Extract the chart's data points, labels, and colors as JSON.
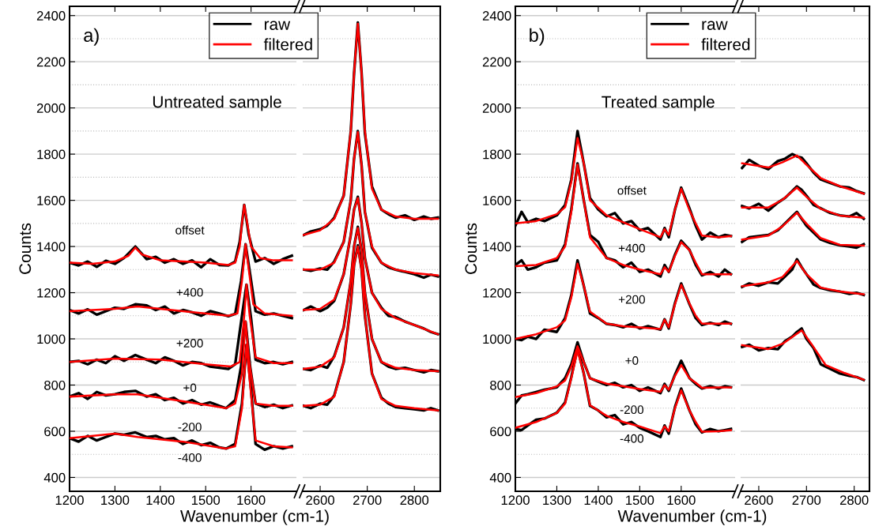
{
  "chart_data": [
    {
      "type": "line",
      "title": "Untreated sample",
      "xlabel": "Wavenumber (cm-1)",
      "ylabel": "Counts",
      "xlim": [
        1200,
        1700
      ],
      "xticks": [
        1200,
        1300,
        1400,
        1500,
        1600
      ],
      "ylim": [
        340,
        2440
      ],
      "yticks": [
        400,
        600,
        800,
        1000,
        1200,
        1400,
        1600,
        1800,
        2000,
        2200,
        2400
      ],
      "grid": "y",
      "legend": "top",
      "tick_labels": "xy",
      "annotations": [
        "a)",
        "offset",
        "+400",
        "+200",
        "+0",
        "-200",
        "-400"
      ],
      "series": [
        {
          "name": "raw",
          "color": "#000000",
          "x": [
            1200,
            1220,
            1240,
            1260,
            1280,
            1300,
            1320,
            1345,
            1370,
            1390,
            1410,
            1430,
            1450,
            1470,
            1490,
            1510,
            1530,
            1550,
            1565,
            1575,
            1585,
            1595,
            1610,
            1630,
            1650,
            1670,
            1690
          ],
          "values": [
            1330,
            1318,
            1335,
            1312,
            1338,
            1325,
            1350,
            1400,
            1345,
            1355,
            1330,
            1345,
            1325,
            1340,
            1310,
            1345,
            1320,
            1318,
            1335,
            1420,
            1580,
            1450,
            1335,
            1350,
            1325,
            1345,
            1360
          ]
        },
        {
          "color": "#000000",
          "x": [
            1200,
            1220,
            1240,
            1260,
            1280,
            1300,
            1320,
            1345,
            1370,
            1390,
            1410,
            1430,
            1450,
            1470,
            1490,
            1510,
            1530,
            1550,
            1565,
            1578,
            1588,
            1598,
            1610,
            1630,
            1650,
            1670,
            1690
          ],
          "values": [
            1125,
            1110,
            1128,
            1105,
            1120,
            1135,
            1130,
            1150,
            1145,
            1125,
            1140,
            1110,
            1125,
            1115,
            1100,
            1120,
            1110,
            1098,
            1108,
            1250,
            1410,
            1280,
            1120,
            1105,
            1110,
            1100,
            1090
          ]
        },
        {
          "color": "#000000",
          "x": [
            1200,
            1220,
            1240,
            1260,
            1280,
            1300,
            1320,
            1345,
            1370,
            1390,
            1410,
            1430,
            1450,
            1470,
            1490,
            1510,
            1530,
            1550,
            1565,
            1580,
            1590,
            1600,
            1610,
            1630,
            1650,
            1670,
            1690
          ],
          "values": [
            900,
            905,
            890,
            910,
            895,
            925,
            905,
            930,
            910,
            895,
            920,
            905,
            885,
            900,
            895,
            880,
            875,
            870,
            890,
            1100,
            1235,
            1090,
            910,
            895,
            900,
            890,
            900
          ]
        },
        {
          "color": "#000000",
          "x": [
            1200,
            1220,
            1240,
            1260,
            1280,
            1300,
            1320,
            1345,
            1370,
            1390,
            1410,
            1430,
            1450,
            1470,
            1490,
            1510,
            1530,
            1545,
            1565,
            1578,
            1588,
            1598,
            1610,
            1630,
            1650,
            1670,
            1690
          ],
          "values": [
            750,
            765,
            740,
            770,
            755,
            760,
            770,
            775,
            750,
            760,
            735,
            745,
            720,
            735,
            715,
            725,
            710,
            700,
            735,
            880,
            1075,
            880,
            720,
            705,
            715,
            700,
            712
          ]
        },
        {
          "color": "#000000",
          "x": [
            1200,
            1220,
            1240,
            1260,
            1280,
            1300,
            1320,
            1345,
            1370,
            1390,
            1410,
            1430,
            1450,
            1470,
            1490,
            1510,
            1530,
            1545,
            1565,
            1580,
            1590,
            1600,
            1610,
            1630,
            1650,
            1670,
            1690
          ],
          "values": [
            570,
            555,
            580,
            560,
            575,
            590,
            585,
            595,
            575,
            580,
            565,
            570,
            545,
            560,
            540,
            550,
            530,
            525,
            545,
            720,
            975,
            780,
            545,
            520,
            535,
            525,
            535
          ]
        },
        {
          "name": "filtered",
          "color": "#ff0000",
          "x": [
            1200,
            1250,
            1300,
            1330,
            1345,
            1360,
            1400,
            1500,
            1550,
            1565,
            1575,
            1580,
            1585,
            1590,
            1600,
            1620,
            1650,
            1690
          ],
          "values": [
            1330,
            1325,
            1335,
            1360,
            1395,
            1365,
            1340,
            1330,
            1320,
            1330,
            1400,
            1500,
            1580,
            1520,
            1400,
            1350,
            1340,
            1340
          ]
        },
        {
          "color": "#ff0000",
          "x": [
            1200,
            1300,
            1350,
            1450,
            1550,
            1570,
            1580,
            1588,
            1595,
            1605,
            1630,
            1690
          ],
          "values": [
            1120,
            1130,
            1140,
            1120,
            1100,
            1110,
            1250,
            1410,
            1300,
            1150,
            1110,
            1100
          ]
        },
        {
          "color": "#ff0000",
          "x": [
            1200,
            1300,
            1400,
            1500,
            1555,
            1575,
            1585,
            1590,
            1597,
            1610,
            1650,
            1690
          ],
          "values": [
            900,
            915,
            910,
            890,
            880,
            900,
            1100,
            1235,
            1100,
            920,
            895,
            895
          ]
        },
        {
          "color": "#ff0000",
          "x": [
            1200,
            1300,
            1350,
            1450,
            1545,
            1565,
            1580,
            1588,
            1596,
            1610,
            1650,
            1690
          ],
          "values": [
            750,
            760,
            760,
            730,
            700,
            720,
            850,
            1075,
            900,
            720,
            710,
            710
          ]
        },
        {
          "color": "#ff0000",
          "x": [
            1200,
            1300,
            1350,
            1450,
            1545,
            1565,
            1580,
            1590,
            1598,
            1610,
            1650,
            1690
          ],
          "values": [
            570,
            590,
            575,
            555,
            525,
            535,
            700,
            975,
            800,
            560,
            535,
            530
          ]
        }
      ]
    },
    {
      "type": "line",
      "xlim": [
        2563,
        2855
      ],
      "xticks": [
        2600,
        2700,
        2800
      ],
      "ylim": [
        340,
        2440
      ],
      "yticks": [
        400,
        600,
        800,
        1000,
        1200,
        1400,
        1600,
        1800,
        2000,
        2200,
        2400
      ],
      "grid": "y",
      "tick_labels": "x",
      "series": [
        {
          "color": "#000000",
          "x": [
            2565,
            2580,
            2600,
            2615,
            2630,
            2650,
            2665,
            2672,
            2680,
            2688,
            2695,
            2710,
            2730,
            2745,
            2760,
            2780,
            2800,
            2820,
            2835,
            2850
          ],
          "values": [
            1450,
            1465,
            1475,
            1490,
            1525,
            1620,
            1900,
            2150,
            2370,
            2150,
            1890,
            1660,
            1560,
            1540,
            1525,
            1535,
            1515,
            1530,
            1520,
            1525
          ]
        },
        {
          "color": "#000000",
          "x": [
            2565,
            2580,
            2600,
            2615,
            2630,
            2650,
            2665,
            2672,
            2680,
            2688,
            2695,
            2710,
            2730,
            2745,
            2760,
            2780,
            2800,
            2820,
            2835,
            2850
          ],
          "values": [
            1300,
            1295,
            1305,
            1300,
            1335,
            1420,
            1600,
            1780,
            1900,
            1750,
            1550,
            1395,
            1330,
            1310,
            1300,
            1290,
            1280,
            1265,
            1278,
            1270
          ]
        },
        {
          "color": "#000000",
          "x": [
            2565,
            2580,
            2600,
            2615,
            2630,
            2650,
            2665,
            2672,
            2680,
            2688,
            2695,
            2710,
            2730,
            2745,
            2760,
            2780,
            2800,
            2820,
            2835,
            2850
          ],
          "values": [
            1125,
            1140,
            1120,
            1135,
            1165,
            1280,
            1450,
            1560,
            1615,
            1500,
            1350,
            1200,
            1135,
            1100,
            1095,
            1075,
            1060,
            1045,
            1030,
            1020
          ]
        },
        {
          "color": "#000000",
          "x": [
            2565,
            2580,
            2600,
            2615,
            2630,
            2650,
            2665,
            2672,
            2680,
            2688,
            2695,
            2710,
            2730,
            2745,
            2760,
            2780,
            2800,
            2820,
            2835,
            2850
          ],
          "values": [
            870,
            865,
            885,
            875,
            925,
            1050,
            1250,
            1400,
            1485,
            1380,
            1200,
            1000,
            900,
            880,
            870,
            875,
            865,
            855,
            865,
            860
          ]
        },
        {
          "color": "#000000",
          "x": [
            2565,
            2580,
            2600,
            2615,
            2630,
            2650,
            2665,
            2672,
            2680,
            2688,
            2695,
            2710,
            2730,
            2745,
            2760,
            2780,
            2800,
            2820,
            2835,
            2850
          ],
          "values": [
            710,
            700,
            720,
            715,
            755,
            900,
            1150,
            1320,
            1405,
            1300,
            1100,
            850,
            745,
            720,
            705,
            700,
            695,
            690,
            700,
            690
          ]
        },
        {
          "color": "#ff0000",
          "x": [
            2565,
            2600,
            2630,
            2650,
            2665,
            2672,
            2680,
            2688,
            2695,
            2710,
            2730,
            2760,
            2800,
            2850
          ],
          "values": [
            1450,
            1470,
            1520,
            1620,
            1900,
            2150,
            2365,
            2150,
            1900,
            1650,
            1560,
            1530,
            1520,
            1520
          ]
        },
        {
          "color": "#ff0000",
          "x": [
            2565,
            2600,
            2630,
            2650,
            2665,
            2672,
            2680,
            2688,
            2695,
            2710,
            2730,
            2760,
            2800,
            2850
          ],
          "values": [
            1300,
            1300,
            1330,
            1420,
            1600,
            1780,
            1895,
            1750,
            1550,
            1400,
            1330,
            1300,
            1285,
            1275
          ]
        },
        {
          "color": "#ff0000",
          "x": [
            2565,
            2600,
            2630,
            2650,
            2665,
            2672,
            2680,
            2688,
            2695,
            2710,
            2730,
            2760,
            2800,
            2850
          ],
          "values": [
            1125,
            1130,
            1170,
            1280,
            1450,
            1560,
            1610,
            1500,
            1350,
            1200,
            1130,
            1090,
            1060,
            1020
          ]
        },
        {
          "color": "#ff0000",
          "x": [
            2565,
            2600,
            2630,
            2650,
            2665,
            2672,
            2680,
            2688,
            2695,
            2710,
            2730,
            2760,
            2800,
            2850
          ],
          "values": [
            870,
            880,
            920,
            1050,
            1250,
            1400,
            1480,
            1380,
            1200,
            1000,
            900,
            875,
            865,
            860
          ]
        },
        {
          "color": "#ff0000",
          "x": [
            2565,
            2600,
            2630,
            2650,
            2665,
            2672,
            2680,
            2688,
            2695,
            2710,
            2730,
            2760,
            2800,
            2850
          ],
          "values": [
            710,
            715,
            750,
            900,
            1150,
            1320,
            1400,
            1300,
            1100,
            850,
            740,
            710,
            700,
            690
          ]
        }
      ]
    },
    {
      "type": "line",
      "title": "Treated sample",
      "xlabel": "Wavenumber (cm-1)",
      "ylabel": "Counts",
      "xlim": [
        1200,
        1730
      ],
      "xticks": [
        1200,
        1300,
        1400,
        1500,
        1600
      ],
      "ylim": [
        340,
        2440
      ],
      "yticks": [
        400,
        600,
        800,
        1000,
        1200,
        1400,
        1600,
        1800,
        2000,
        2200,
        2400
      ],
      "grid": "y",
      "legend": "top",
      "tick_labels": "xy",
      "annotations": [
        "b)",
        "offset",
        "+400",
        "+200",
        "+0",
        "-200",
        "-400"
      ],
      "series": [
        {
          "name": "raw",
          "color": "#000000",
          "x": [
            1200,
            1215,
            1230,
            1250,
            1270,
            1300,
            1320,
            1335,
            1350,
            1365,
            1380,
            1400,
            1420,
            1440,
            1460,
            1480,
            1500,
            1520,
            1550,
            1560,
            1570,
            1585,
            1600,
            1620,
            1635,
            1650,
            1670,
            1690,
            1705,
            1720
          ],
          "values": [
            1490,
            1550,
            1505,
            1520,
            1510,
            1535,
            1580,
            1690,
            1900,
            1760,
            1610,
            1560,
            1530,
            1545,
            1500,
            1510,
            1470,
            1480,
            1430,
            1480,
            1440,
            1560,
            1655,
            1565,
            1490,
            1430,
            1460,
            1440,
            1450,
            1445
          ]
        },
        {
          "color": "#000000",
          "x": [
            1200,
            1215,
            1230,
            1250,
            1270,
            1300,
            1320,
            1335,
            1350,
            1365,
            1380,
            1400,
            1420,
            1440,
            1460,
            1480,
            1500,
            1520,
            1550,
            1560,
            1570,
            1585,
            1600,
            1620,
            1635,
            1650,
            1670,
            1690,
            1705,
            1720
          ],
          "values": [
            1320,
            1340,
            1300,
            1310,
            1330,
            1340,
            1410,
            1560,
            1760,
            1600,
            1450,
            1420,
            1350,
            1340,
            1310,
            1330,
            1290,
            1300,
            1270,
            1320,
            1290,
            1365,
            1425,
            1385,
            1320,
            1275,
            1290,
            1270,
            1300,
            1280
          ]
        },
        {
          "color": "#000000",
          "x": [
            1200,
            1215,
            1230,
            1250,
            1270,
            1300,
            1320,
            1335,
            1350,
            1365,
            1380,
            1400,
            1420,
            1440,
            1460,
            1480,
            1500,
            1520,
            1550,
            1560,
            1570,
            1585,
            1600,
            1620,
            1635,
            1650,
            1670,
            1690,
            1705,
            1720
          ],
          "values": [
            1000,
            995,
            1010,
            1000,
            1040,
            1030,
            1090,
            1190,
            1340,
            1230,
            1110,
            1090,
            1065,
            1060,
            1050,
            1065,
            1045,
            1055,
            1040,
            1085,
            1045,
            1155,
            1240,
            1150,
            1090,
            1060,
            1070,
            1060,
            1075,
            1065
          ]
        },
        {
          "color": "#000000",
          "x": [
            1200,
            1215,
            1230,
            1250,
            1270,
            1300,
            1320,
            1335,
            1350,
            1365,
            1380,
            1400,
            1420,
            1440,
            1460,
            1480,
            1500,
            1520,
            1550,
            1560,
            1570,
            1585,
            1600,
            1620,
            1635,
            1650,
            1670,
            1690,
            1705,
            1720
          ],
          "values": [
            720,
            755,
            760,
            770,
            780,
            790,
            830,
            890,
            985,
            900,
            830,
            815,
            800,
            810,
            790,
            800,
            775,
            790,
            765,
            805,
            775,
            845,
            905,
            830,
            805,
            785,
            795,
            785,
            795,
            790
          ]
        },
        {
          "color": "#000000",
          "x": [
            1200,
            1215,
            1230,
            1250,
            1270,
            1300,
            1320,
            1335,
            1350,
            1365,
            1380,
            1400,
            1420,
            1440,
            1460,
            1480,
            1500,
            1520,
            1550,
            1560,
            1570,
            1585,
            1600,
            1620,
            1635,
            1650,
            1670,
            1690,
            1705,
            1720
          ],
          "values": [
            610,
            605,
            625,
            650,
            655,
            680,
            725,
            835,
            960,
            850,
            710,
            690,
            660,
            670,
            630,
            640,
            615,
            600,
            575,
            625,
            590,
            705,
            785,
            690,
            630,
            595,
            610,
            600,
            605,
            610
          ]
        },
        {
          "name": "filtered",
          "color": "#ff0000",
          "x": [
            1200,
            1250,
            1300,
            1320,
            1335,
            1350,
            1365,
            1380,
            1420,
            1460,
            1500,
            1550,
            1560,
            1570,
            1585,
            1600,
            1620,
            1635,
            1650,
            1690,
            1720
          ],
          "values": [
            1500,
            1510,
            1540,
            1570,
            1680,
            1870,
            1760,
            1600,
            1535,
            1505,
            1475,
            1440,
            1475,
            1450,
            1560,
            1650,
            1557,
            1500,
            1447,
            1440,
            1445
          ]
        },
        {
          "color": "#ff0000",
          "x": [
            1200,
            1250,
            1300,
            1320,
            1335,
            1350,
            1365,
            1380,
            1420,
            1460,
            1500,
            1550,
            1560,
            1570,
            1585,
            1600,
            1620,
            1635,
            1650,
            1690,
            1720
          ],
          "values": [
            1315,
            1320,
            1350,
            1400,
            1550,
            1754,
            1600,
            1440,
            1350,
            1320,
            1300,
            1280,
            1310,
            1290,
            1360,
            1419,
            1384,
            1330,
            1280,
            1280,
            1280
          ]
        },
        {
          "color": "#ff0000",
          "x": [
            1200,
            1250,
            1300,
            1320,
            1335,
            1350,
            1365,
            1380,
            1420,
            1460,
            1500,
            1550,
            1560,
            1570,
            1585,
            1600,
            1620,
            1635,
            1650,
            1690,
            1720
          ],
          "values": [
            1000,
            1020,
            1050,
            1080,
            1180,
            1326,
            1230,
            1118,
            1066,
            1055,
            1050,
            1043,
            1083,
            1050,
            1150,
            1234,
            1153,
            1100,
            1066,
            1066,
            1066
          ]
        },
        {
          "color": "#ff0000",
          "x": [
            1200,
            1250,
            1300,
            1320,
            1335,
            1350,
            1365,
            1380,
            1420,
            1460,
            1500,
            1550,
            1560,
            1570,
            1585,
            1600,
            1620,
            1635,
            1650,
            1690,
            1720
          ],
          "values": [
            748,
            765,
            794,
            820,
            880,
            968,
            900,
            829,
            806,
            795,
            783,
            771,
            800,
            780,
            840,
            887,
            829,
            810,
            788,
            790,
            790
          ]
        },
        {
          "color": "#ff0000",
          "x": [
            1200,
            1250,
            1300,
            1320,
            1335,
            1350,
            1365,
            1380,
            1420,
            1460,
            1500,
            1550,
            1560,
            1570,
            1585,
            1600,
            1620,
            1635,
            1650,
            1690,
            1720
          ],
          "values": [
            615,
            640,
            679,
            720,
            830,
            950,
            850,
            713,
            667,
            640,
            621,
            592,
            621,
            600,
            700,
            777,
            690,
            640,
            598,
            600,
            605
          ]
        }
      ]
    },
    {
      "type": "line",
      "xlim": [
        2562,
        2832
      ],
      "xticks": [
        2600,
        2700,
        2800
      ],
      "ylim": [
        340,
        2440
      ],
      "yticks": [
        400,
        600,
        800,
        1000,
        1200,
        1400,
        1600,
        1800,
        2000,
        2200,
        2400
      ],
      "grid": "y",
      "tick_labels": "x",
      "series": [
        {
          "color": "#000000",
          "x": [
            2565,
            2580,
            2600,
            2620,
            2640,
            2655,
            2670,
            2680,
            2690,
            2700,
            2715,
            2730,
            2750,
            2770,
            2790,
            2805,
            2820
          ],
          "values": [
            1740,
            1775,
            1750,
            1735,
            1770,
            1780,
            1800,
            1790,
            1785,
            1760,
            1720,
            1690,
            1675,
            1660,
            1655,
            1640,
            1630
          ]
        },
        {
          "color": "#000000",
          "x": [
            2565,
            2580,
            2600,
            2620,
            2640,
            2655,
            2670,
            2680,
            2690,
            2700,
            2715,
            2730,
            2750,
            2770,
            2790,
            2805,
            2820
          ],
          "values": [
            1575,
            1565,
            1585,
            1555,
            1590,
            1610,
            1640,
            1660,
            1645,
            1620,
            1580,
            1565,
            1545,
            1535,
            1530,
            1545,
            1520
          ]
        },
        {
          "color": "#000000",
          "x": [
            2565,
            2580,
            2600,
            2620,
            2640,
            2655,
            2670,
            2680,
            2690,
            2700,
            2715,
            2730,
            2750,
            2770,
            2790,
            2805,
            2820
          ],
          "values": [
            1420,
            1440,
            1445,
            1450,
            1470,
            1500,
            1530,
            1550,
            1520,
            1490,
            1460,
            1430,
            1415,
            1405,
            1400,
            1395,
            1410
          ]
        },
        {
          "color": "#000000",
          "x": [
            2565,
            2580,
            2600,
            2620,
            2640,
            2655,
            2670,
            2680,
            2690,
            2700,
            2715,
            2730,
            2750,
            2770,
            2790,
            2805,
            2820
          ],
          "values": [
            1225,
            1240,
            1230,
            1245,
            1240,
            1270,
            1300,
            1345,
            1310,
            1280,
            1235,
            1220,
            1210,
            1205,
            1195,
            1200,
            1190
          ]
        },
        {
          "color": "#000000",
          "x": [
            2565,
            2580,
            2600,
            2620,
            2640,
            2655,
            2670,
            2680,
            2690,
            2700,
            2715,
            2730,
            2750,
            2770,
            2790,
            2805,
            2820
          ],
          "values": [
            965,
            975,
            950,
            960,
            955,
            990,
            1010,
            1030,
            1045,
            1000,
            960,
            890,
            870,
            850,
            840,
            835,
            822
          ]
        },
        {
          "color": "#ff0000",
          "x": [
            2565,
            2620,
            2650,
            2680,
            2700,
            2730,
            2770,
            2820
          ],
          "values": [
            1760,
            1742,
            1765,
            1794,
            1754,
            1696,
            1661,
            1629
          ]
        },
        {
          "color": "#ff0000",
          "x": [
            2565,
            2620,
            2650,
            2680,
            2700,
            2730,
            2770,
            2820
          ],
          "values": [
            1569,
            1569,
            1603,
            1655,
            1615,
            1563,
            1534,
            1525
          ]
        },
        {
          "color": "#ff0000",
          "x": [
            2565,
            2620,
            2650,
            2680,
            2700,
            2730,
            2770,
            2820
          ],
          "values": [
            1430,
            1447,
            1488,
            1546,
            1499,
            1436,
            1407,
            1404
          ]
        },
        {
          "color": "#ff0000",
          "x": [
            2565,
            2620,
            2650,
            2680,
            2700,
            2730,
            2770,
            2820
          ],
          "values": [
            1228,
            1245,
            1268,
            1338,
            1280,
            1222,
            1205,
            1193
          ]
        },
        {
          "color": "#ff0000",
          "x": [
            2565,
            2620,
            2650,
            2690,
            2710,
            2740,
            2780,
            2820
          ],
          "values": [
            973,
            956,
            979,
            1037,
            979,
            887,
            852,
            823
          ]
        }
      ]
    }
  ]
}
